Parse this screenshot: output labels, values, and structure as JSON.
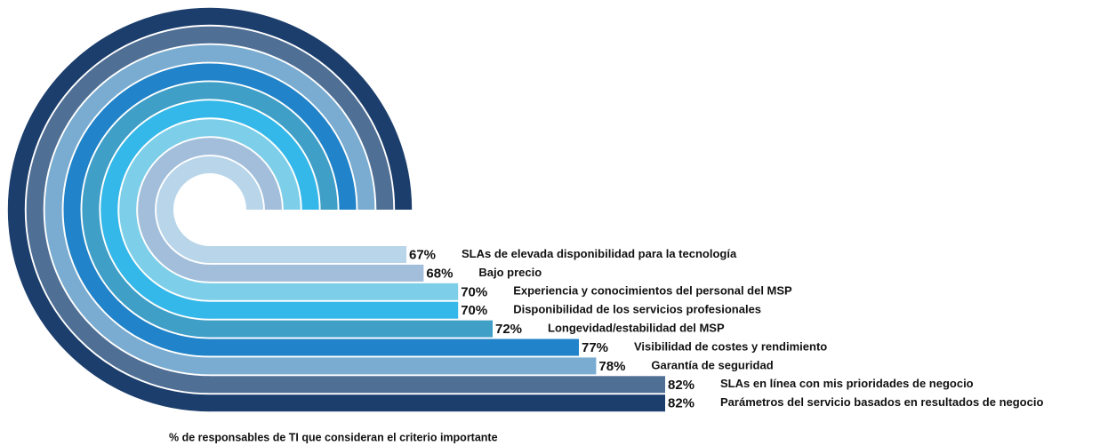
{
  "chart_data": {
    "type": "bar",
    "categories": [
      "SLAs de elevada disponibilidad para la tecnología",
      "Bajo precio",
      "Experiencia y conocimientos del personal del MSP",
      "Disponibilidad de los servicios profesionales",
      "Longevidad/estabilidad del MSP",
      "Visibilidad de costes y rendimiento",
      "Garantía de seguridad",
      "SLAs en línea con mis prioridades de negocio",
      "Parámetros del servicio basados en resultados de negocio"
    ],
    "values": [
      67,
      68,
      70,
      70,
      72,
      77,
      78,
      82,
      82
    ],
    "value_labels": [
      "67%",
      "68%",
      "70%",
      "70%",
      "72%",
      "77%",
      "78%",
      "82%",
      "82%"
    ],
    "colors": [
      "#b8d5ea",
      "#a2bedb",
      "#7dcfe9",
      "#34b8e9",
      "#3f9fc7",
      "#2183c9",
      "#79acd0",
      "#506f95",
      "#1c3e6c"
    ],
    "xlabel": "% de responsables de TI que consideran el criterio importante"
  }
}
